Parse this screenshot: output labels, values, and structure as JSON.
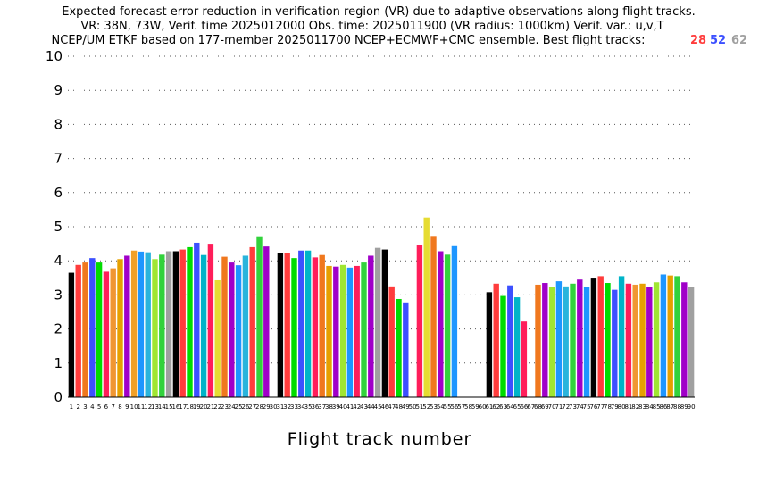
{
  "title_lines": [
    "Expected forecast error reduction in verification region (VR) due to adaptive observations along flight tracks.",
    "VR: 38N, 73W, Verif. time 2025012000 Obs. time: 2025011900 (VR radius: 1000km)  Verif. var.: u,v,T",
    "NCEP/UM ETKF based on 177-member 2025011700 NCEP+ECMWF+CMC ensemble. Best flight tracks:"
  ],
  "best_tracks": [
    {
      "label": "28",
      "color": "#ff3c3c"
    },
    {
      "label": "52",
      "color": "#3c50ff"
    },
    {
      "label": "62",
      "color": "#a0a0a0"
    }
  ],
  "chart_data": {
    "type": "bar",
    "title": "Expected forecast error reduction in verification region (VR) due to adaptive observations along flight tracks.",
    "xlabel": "Flight track number",
    "ylabel": "",
    "ylim": [
      0,
      10
    ],
    "yticks": [
      0,
      1,
      2,
      3,
      4,
      5,
      6,
      7,
      8,
      9,
      10
    ],
    "grid": "horizontal dotted",
    "categories": [
      "1",
      "2",
      "3",
      "4",
      "5",
      "6",
      "7",
      "8",
      "9",
      "10",
      "11",
      "12",
      "13",
      "14",
      "15",
      "16",
      "17",
      "18",
      "19",
      "20",
      "21",
      "22",
      "23",
      "24",
      "25",
      "26",
      "27",
      "28",
      "29",
      "30",
      "31",
      "32",
      "33",
      "34",
      "35",
      "36",
      "37",
      "38",
      "39",
      "40",
      "41",
      "42",
      "43",
      "44",
      "45",
      "46",
      "47",
      "48",
      "49",
      "50",
      "51",
      "52",
      "53",
      "54",
      "55",
      "56",
      "57",
      "58",
      "59",
      "60",
      "61",
      "62",
      "63",
      "64",
      "65",
      "66",
      "67",
      "68",
      "69",
      "70",
      "71",
      "72",
      "73",
      "74",
      "75",
      "76",
      "77",
      "78",
      "79",
      "80",
      "81",
      "82",
      "83",
      "84",
      "85",
      "86",
      "87",
      "88",
      "89",
      "90"
    ],
    "values": [
      3.65,
      3.88,
      3.95,
      4.08,
      3.95,
      3.68,
      3.78,
      4.05,
      4.15,
      4.3,
      4.27,
      4.25,
      4.05,
      4.18,
      4.28,
      4.28,
      4.33,
      4.4,
      4.53,
      4.17,
      4.5,
      3.43,
      4.12,
      3.95,
      3.87,
      4.15,
      4.4,
      4.72,
      4.42,
      null,
      4.23,
      4.22,
      4.08,
      4.3,
      4.3,
      4.1,
      4.17,
      3.85,
      3.83,
      3.88,
      3.8,
      3.85,
      3.95,
      4.15,
      4.38,
      4.33,
      3.25,
      2.88,
      2.78,
      null,
      4.45,
      5.27,
      4.73,
      4.28,
      4.18,
      4.43,
      null,
      null,
      null,
      null,
      3.08,
      3.33,
      2.97,
      3.28,
      2.93,
      2.22,
      null,
      3.3,
      3.35,
      3.22,
      3.4,
      3.25,
      3.33,
      3.45,
      3.22,
      3.48,
      3.55,
      3.35,
      3.15,
      3.55,
      3.33,
      3.3,
      3.33,
      3.22,
      3.37,
      3.6,
      3.57,
      3.55,
      3.37,
      3.22
    ],
    "bar_colors": [
      "#000000",
      "#ff3c3c",
      "#f0781e",
      "#3c50ff",
      "#00dc00",
      "#ff1e5a",
      "#f09632",
      "#e6a000",
      "#a000c8",
      "#f0a028",
      "#1e96ff",
      "#2ab4dc",
      "#a0e632",
      "#32d23c",
      "#a0a0a0",
      "#000000",
      "#ff3c3c",
      "#00dc00",
      "#3c50ff",
      "#00b4c8",
      "#ff1e5a",
      "#e6dc32",
      "#f0781e",
      "#a000c8",
      "#1e96ff",
      "#2ab4dc",
      "#ff3c3c",
      "#32d23c",
      "#a000c8",
      "#a0a0a0",
      "#000000",
      "#ff3c3c",
      "#00dc00",
      "#3c50ff",
      "#00b4c8",
      "#ff1e5a",
      "#f0781e",
      "#e6a000",
      "#a000c8",
      "#a0e632",
      "#1e96ff",
      "#ff1e5a",
      "#32d23c",
      "#a000c8",
      "#a0a0a0",
      "#000000",
      "#ff3c3c",
      "#00dc00",
      "#3c50ff",
      "#a0a0a0",
      "#ff1e5a",
      "#e6dc32",
      "#f0781e",
      "#a000c8",
      "#32d23c",
      "#1e96ff",
      "#a0a0a0",
      "#a0a0a0",
      "#a0a0a0",
      "#a0a0a0",
      "#000000",
      "#ff3c3c",
      "#00dc00",
      "#3c50ff",
      "#00b4c8",
      "#ff1e5a",
      "#a0a0a0",
      "#f0781e",
      "#a000c8",
      "#a0e632",
      "#1e96ff",
      "#2ab4dc",
      "#32d23c",
      "#a000c8",
      "#1e96ff",
      "#000000",
      "#ff3c3c",
      "#00dc00",
      "#3c50ff",
      "#00b4c8",
      "#ff1e5a",
      "#f09632",
      "#e6a000",
      "#a000c8",
      "#a0e632",
      "#1e96ff",
      "#e6a000",
      "#32d23c",
      "#a000c8",
      "#a0a0a0"
    ]
  }
}
